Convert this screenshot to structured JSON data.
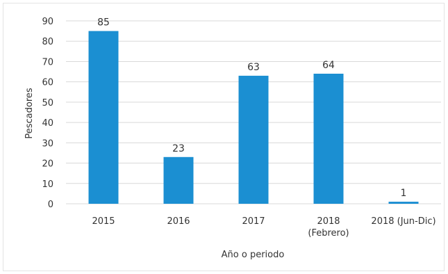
{
  "chart_data": {
    "type": "bar",
    "categories": [
      "2015",
      "2016",
      "2017",
      "2018\n(Febrero)",
      "2018 (Jun-Dic)"
    ],
    "values": [
      85,
      23,
      63,
      64,
      1
    ],
    "xlabel": "Año o periodo",
    "ylabel": "Pescadores",
    "ylim": [
      0,
      90
    ],
    "yticks": [
      0,
      10,
      20,
      30,
      40,
      50,
      60,
      70,
      80,
      90
    ],
    "grid": true,
    "bar_color": "#1b8fd2"
  }
}
